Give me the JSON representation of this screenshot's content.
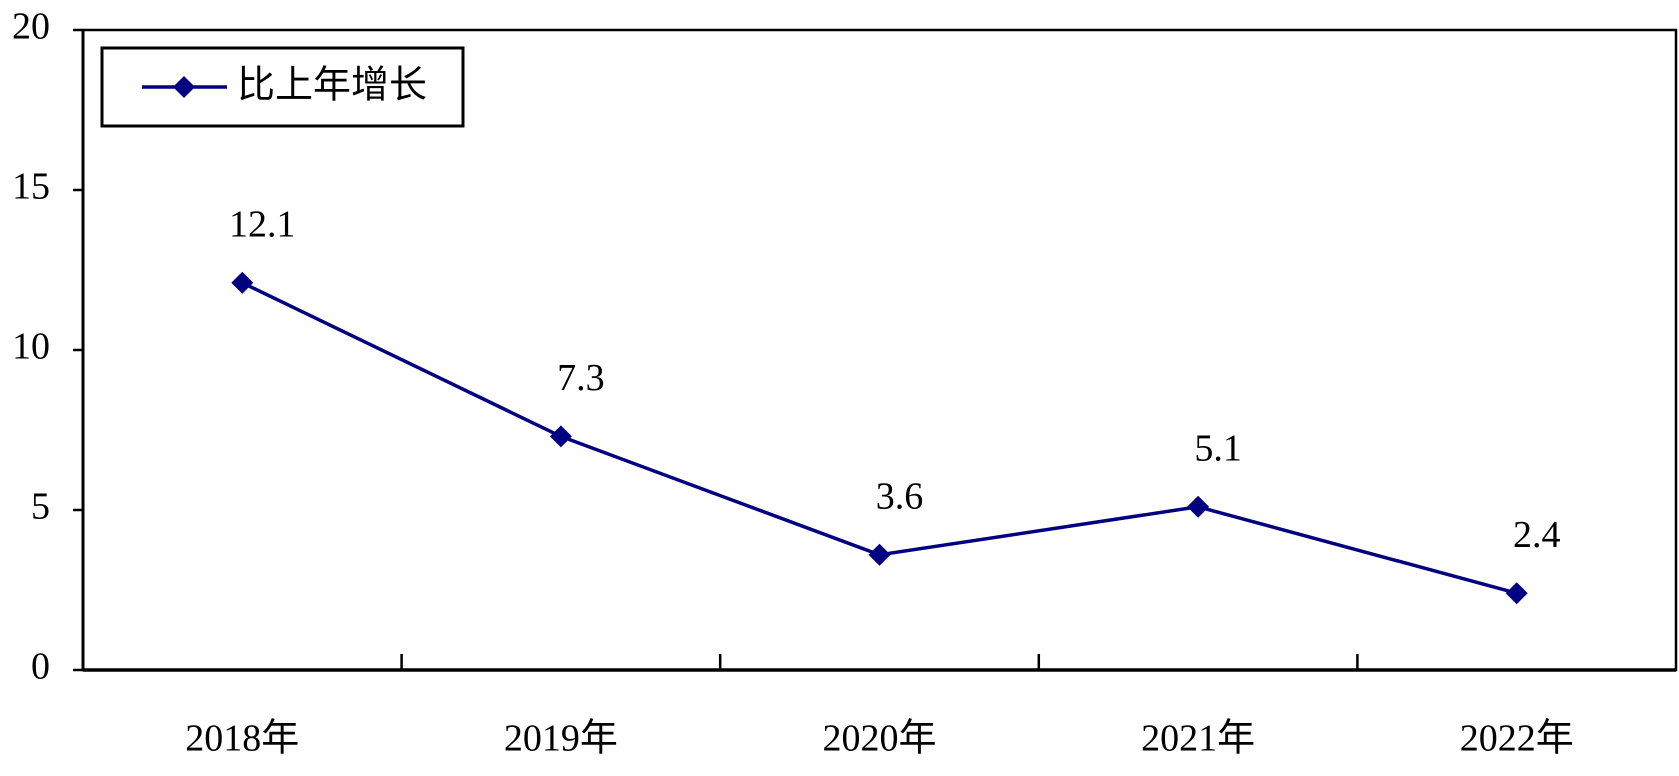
{
  "chart_data": {
    "type": "line",
    "categories": [
      "2018年",
      "2019年",
      "2020年",
      "2021年",
      "2022年"
    ],
    "series": [
      {
        "name": "比上年增长",
        "color": "#000080",
        "values": [
          12.1,
          7.3,
          3.6,
          5.1,
          2.4
        ]
      }
    ],
    "ylim": [
      0,
      20
    ],
    "yticks": [
      0,
      5,
      10,
      15,
      20
    ],
    "legend": "upper left",
    "data_labels": true
  }
}
